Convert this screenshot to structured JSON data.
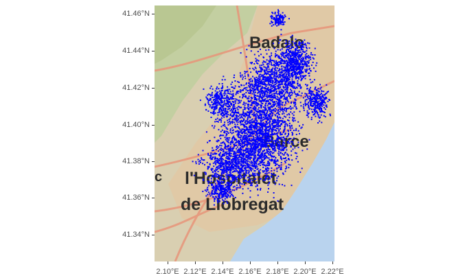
{
  "map": {
    "y_axis_labels": [
      "41.46°N",
      "41.44°N",
      "41.42°N",
      "41.40°N",
      "41.38°N",
      "41.36°N",
      "41.34°N"
    ],
    "x_axis_labels": [
      "2.10°E",
      "2.12°E",
      "2.14°E",
      "2.16°E",
      "2.18°E",
      "2.20°E",
      "2.22°E"
    ],
    "basemap_labels": [
      "Badalo",
      "Barce",
      "l'Hospitalet",
      "de Llobregat",
      "c"
    ],
    "colors": {
      "points": "#0000ff",
      "sea": "#b9d3ee",
      "land": "#d9cfb1",
      "park": "#c3cfa1",
      "roads": "#e8957a",
      "urban": "#e0c9a6"
    },
    "point_cloud": "dense blue point observations over Barcelona"
  }
}
